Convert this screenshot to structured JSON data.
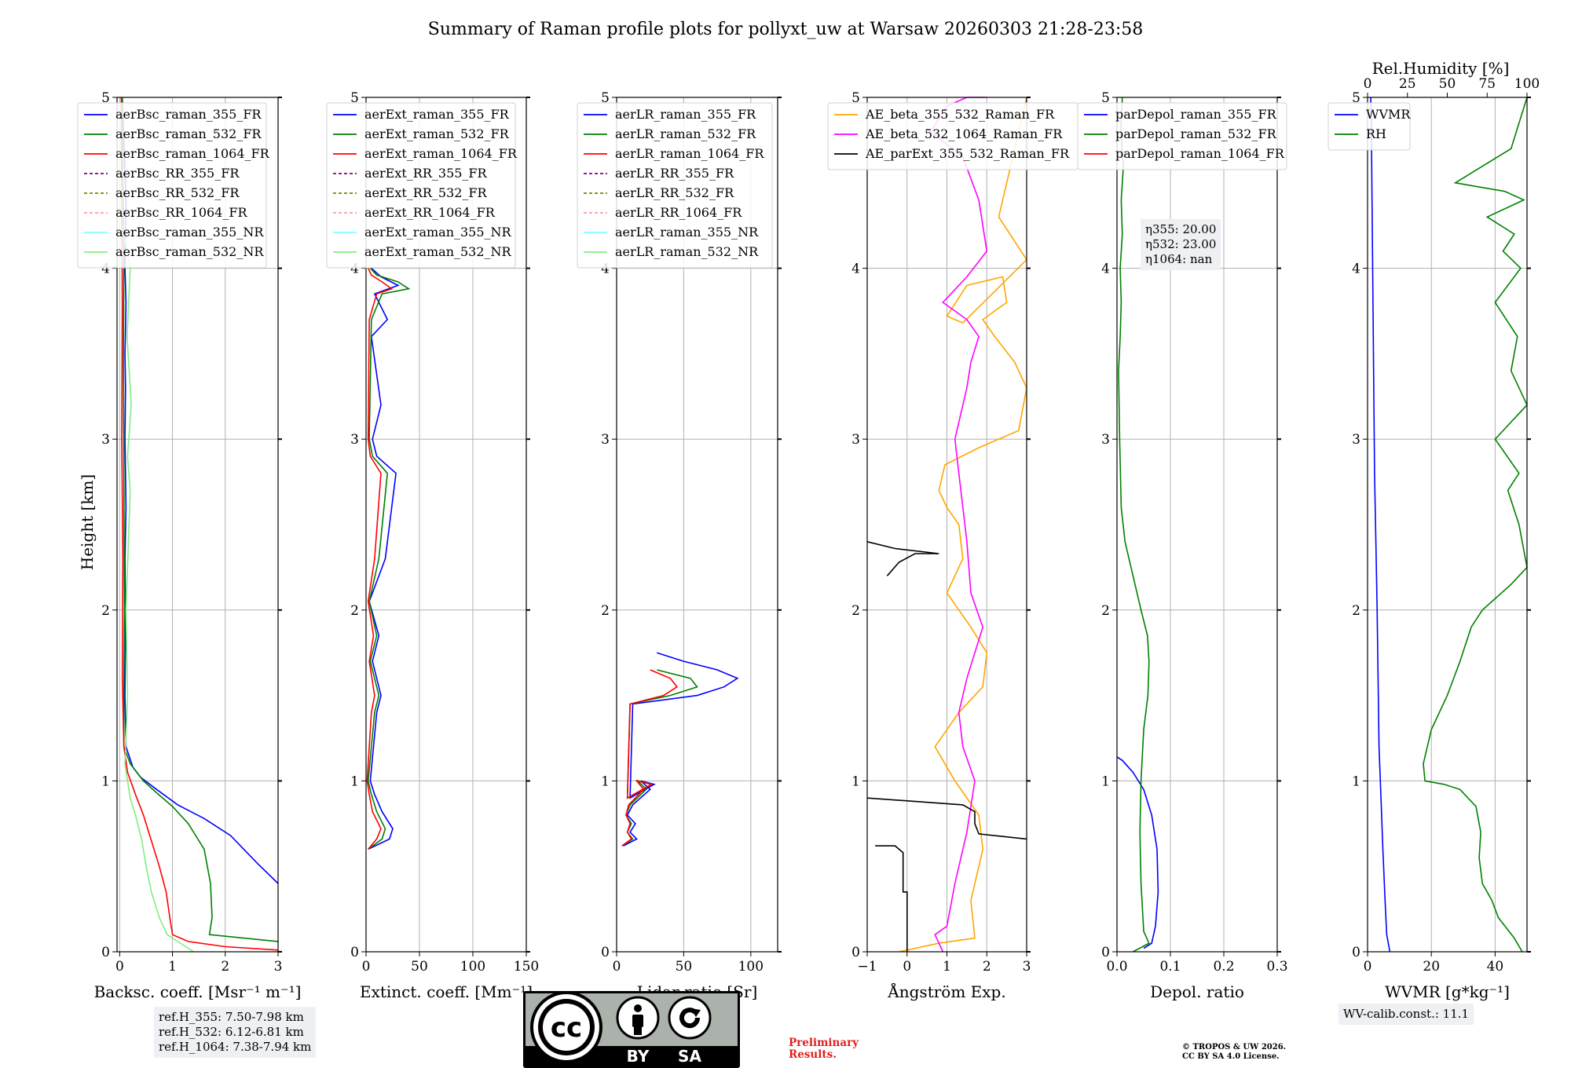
{
  "page": {
    "title": "Summary of Raman profile plots for pollyxt_uw at Warsaw 20260303 21:28-23:58"
  },
  "colors": {
    "blue": "#0000ff",
    "green": "#008000",
    "red": "#ff0000",
    "purple": "#800080",
    "olive": "#808000",
    "pink": "#ff9999",
    "cyan": "#80ffff",
    "lightgreen": "#80ee80",
    "orange": "#ffa500",
    "magenta": "#ff00ff",
    "black": "#000000"
  },
  "annotations": {
    "eta_lines": [
      "η355: 20.00",
      "η532: 23.00",
      "η1064: nan"
    ],
    "ref_lines": [
      "ref.H_355: 7.50-7.98 km",
      "ref.H_532: 6.12-6.81 km",
      "ref.H_1064: 7.38-7.94 km"
    ],
    "wv_calib": "WV-calib.const.: 11.1",
    "preliminary": [
      "Preliminary",
      "Results."
    ],
    "copyright": [
      "© TROPOS & UW 2026.",
      "CC BY SA 4.0 License."
    ],
    "license_logo": {
      "top_text": "cc",
      "by": "BY",
      "sa": "SA"
    }
  },
  "chart_data": [
    {
      "type": "line",
      "id": "backscatter",
      "xlabel": "Backsc. coeff. [Msr⁻¹ m⁻¹]",
      "ylabel": "Height [km]",
      "xlim": [
        -0.05,
        3
      ],
      "ylim": [
        0,
        5
      ],
      "xticks": [
        "0",
        "1",
        "2",
        "3"
      ],
      "xtick_values": [
        0,
        1,
        2,
        3
      ],
      "yticks": [
        "0",
        "1",
        "2",
        "3",
        "4",
        "5"
      ],
      "legend": [
        "aerBsc_raman_355_FR",
        "aerBsc_raman_532_FR",
        "aerBsc_raman_1064_FR",
        "aerBsc_RR_355_FR",
        "aerBsc_RR_532_FR",
        "aerBsc_RR_1064_FR",
        "aerBsc_raman_355_NR",
        "aerBsc_raman_532_NR"
      ],
      "series": [
        {
          "name": "aerBsc_raman_355_FR",
          "color": "blue",
          "x": [
            3.0,
            2.6,
            2.1,
            1.6,
            1.1,
            0.7,
            0.4,
            0.25,
            0.12,
            0.1,
            0.11,
            0.1,
            0.12,
            0.1,
            0.11,
            0.1,
            0.12,
            0.1,
            0.12,
            0.05
          ],
          "y": [
            0.4,
            0.52,
            0.68,
            0.78,
            0.86,
            0.95,
            1.02,
            1.08,
            1.2,
            1.5,
            1.9,
            2.3,
            2.6,
            3.0,
            3.3,
            3.5,
            3.8,
            4.0,
            4.4,
            5.0
          ]
        },
        {
          "name": "aerBsc_raman_532_FR",
          "color": "green",
          "x": [
            3.0,
            1.7,
            1.75,
            1.72,
            1.6,
            1.3,
            1.0,
            0.7,
            0.45,
            0.2,
            0.08,
            0.08,
            0.09,
            0.08,
            0.07,
            0.08,
            0.05
          ],
          "y": [
            0.06,
            0.1,
            0.2,
            0.4,
            0.6,
            0.75,
            0.85,
            0.93,
            1.0,
            1.1,
            1.2,
            1.6,
            2.0,
            2.8,
            3.5,
            4.0,
            5.0
          ]
        },
        {
          "name": "aerBsc_raman_1064_FR",
          "color": "red",
          "x": [
            3.0,
            2.0,
            1.3,
            1.0,
            0.95,
            0.88,
            0.75,
            0.6,
            0.45,
            0.3,
            0.15,
            0.08,
            0.05,
            0.06,
            0.04,
            0.05,
            0.03
          ],
          "y": [
            0.01,
            0.03,
            0.06,
            0.1,
            0.2,
            0.35,
            0.5,
            0.65,
            0.8,
            0.92,
            1.05,
            1.2,
            1.6,
            2.3,
            3.0,
            3.8,
            5.0
          ]
        },
        {
          "name": "aerBsc_raman_532_NR",
          "color": "lightgreen",
          "x": [
            1.4,
            0.9,
            0.75,
            0.6,
            0.5,
            0.42,
            0.3,
            0.2,
            0.1,
            0.15,
            0.12,
            0.2,
            0.15,
            0.22,
            0.14,
            0.2,
            0.08
          ],
          "y": [
            0.0,
            0.1,
            0.2,
            0.35,
            0.5,
            0.65,
            0.8,
            0.9,
            1.1,
            1.5,
            2.0,
            2.7,
            2.9,
            3.2,
            3.6,
            4.0,
            4.2
          ]
        }
      ]
    },
    {
      "type": "line",
      "id": "extinction",
      "xlabel": "Extinct. coeff. [Mm⁻¹]",
      "ylabel": "",
      "xlim": [
        0,
        150
      ],
      "ylim": [
        0,
        5
      ],
      "xticks": [
        "0",
        "50",
        "100",
        "150"
      ],
      "xtick_values": [
        0,
        50,
        100,
        150
      ],
      "yticks": [
        "0",
        "1",
        "2",
        "3",
        "4",
        "5"
      ],
      "legend": [
        "aerExt_raman_355_FR",
        "aerExt_raman_532_FR",
        "aerExt_raman_1064_FR",
        "aerExt_RR_355_FR",
        "aerExt_RR_532_FR",
        "aerExt_RR_1064_FR",
        "aerExt_raman_355_NR",
        "aerExt_raman_532_NR"
      ],
      "series": [
        {
          "name": "aerExt_raman_355_FR",
          "color": "blue",
          "x": [
            2,
            22,
            25,
            15,
            8,
            4,
            10,
            14,
            6,
            12,
            3,
            18,
            28,
            10,
            6,
            14,
            5,
            20,
            8,
            30,
            14,
            5
          ],
          "y": [
            0.6,
            0.66,
            0.72,
            0.82,
            0.92,
            1.0,
            1.4,
            1.5,
            1.7,
            1.85,
            2.05,
            2.3,
            2.8,
            2.9,
            3.0,
            3.2,
            3.6,
            3.7,
            3.85,
            3.9,
            3.95,
            4.0
          ]
        },
        {
          "name": "aerExt_raman_532_FR",
          "color": "green",
          "x": [
            2,
            15,
            18,
            10,
            5,
            2,
            8,
            12,
            4,
            10,
            3,
            12,
            20,
            6,
            3,
            5,
            15,
            40,
            30,
            10,
            4
          ],
          "y": [
            0.6,
            0.66,
            0.72,
            0.82,
            0.92,
            1.0,
            1.4,
            1.5,
            1.7,
            1.85,
            2.05,
            2.3,
            2.8,
            2.9,
            3.0,
            3.7,
            3.85,
            3.88,
            3.92,
            3.96,
            4.0
          ]
        },
        {
          "name": "aerExt_raman_1064_FR",
          "color": "red",
          "x": [
            2,
            10,
            14,
            6,
            3,
            1,
            5,
            8,
            3,
            7,
            2,
            8,
            14,
            4,
            2,
            3,
            10,
            24,
            15,
            5,
            2
          ],
          "y": [
            0.6,
            0.66,
            0.72,
            0.82,
            0.92,
            1.0,
            1.4,
            1.5,
            1.7,
            1.85,
            2.05,
            2.3,
            2.8,
            2.9,
            3.0,
            3.7,
            3.85,
            3.88,
            3.92,
            3.96,
            4.0
          ]
        }
      ]
    },
    {
      "type": "line",
      "id": "lidar_ratio",
      "xlabel": "Lidar ratio [Sr]",
      "ylabel": "",
      "xlim": [
        0,
        120
      ],
      "ylim": [
        0,
        5
      ],
      "xticks": [
        "0",
        "50",
        "100"
      ],
      "xtick_values": [
        0,
        50,
        100
      ],
      "yticks": [
        "0",
        "1",
        "2",
        "3",
        "4",
        "5"
      ],
      "legend": [
        "aerLR_raman_355_FR",
        "aerLR_raman_532_FR",
        "aerLR_raman_1064_FR",
        "aerLR_RR_355_FR",
        "aerLR_RR_532_FR",
        "aerLR_RR_1064_FR",
        "aerLR_raman_355_NR",
        "aerLR_raman_532_NR"
      ],
      "series": [
        {
          "name": "aerLR_raman_355_FR",
          "color": "blue",
          "x": [
            5,
            15,
            10,
            14,
            8,
            12,
            25,
            18,
            28,
            10,
            12,
            60,
            80,
            90,
            75,
            50,
            30
          ],
          "y": [
            0.62,
            0.66,
            0.7,
            0.75,
            0.8,
            0.86,
            0.95,
            1.0,
            0.98,
            0.9,
            1.45,
            1.5,
            1.55,
            1.6,
            1.65,
            1.7,
            1.75
          ]
        },
        {
          "name": "aerLR_raman_532_FR",
          "color": "green",
          "x": [
            4,
            12,
            8,
            11,
            7,
            10,
            22,
            16,
            26,
            8,
            10,
            40,
            60,
            55,
            30
          ],
          "y": [
            0.62,
            0.66,
            0.7,
            0.75,
            0.8,
            0.86,
            0.95,
            1.0,
            0.98,
            0.9,
            1.45,
            1.5,
            1.55,
            1.6,
            1.65
          ]
        },
        {
          "name": "aerLR_raman_1064_FR",
          "color": "red",
          "x": [
            4,
            11,
            8,
            10,
            7,
            9,
            20,
            15,
            26,
            8,
            10,
            35,
            45,
            40,
            25
          ],
          "y": [
            0.62,
            0.66,
            0.7,
            0.75,
            0.8,
            0.86,
            0.95,
            1.0,
            0.98,
            0.9,
            1.45,
            1.5,
            1.55,
            1.6,
            1.65
          ]
        }
      ]
    },
    {
      "type": "line",
      "id": "angstrom",
      "xlabel": "Ångström Exp.",
      "ylabel": "",
      "xlim": [
        -1,
        3
      ],
      "ylim": [
        0,
        5
      ],
      "xticks": [
        "−1",
        "0",
        "1",
        "2",
        "3"
      ],
      "xtick_values": [
        -1,
        0,
        1,
        2,
        3
      ],
      "yticks": [
        "0",
        "1",
        "2",
        "3",
        "4",
        "5"
      ],
      "legend": [
        "AE_beta_355_532_Raman_FR",
        "AE_beta_532_1064_Raman_FR",
        "AE_parExt_355_532_Raman_FR"
      ],
      "series": [
        {
          "name": "AE_beta_355_532_Raman_FR",
          "color": "orange",
          "x": [
            -0.2,
            0.8,
            1.7,
            1.6,
            1.9,
            1.8,
            1.2,
            0.7,
            1.3,
            1.9,
            2.0,
            1.6,
            1.0,
            1.4,
            1.3,
            1.0,
            0.8,
            0.95,
            1.8,
            2.8,
            3.0,
            2.7,
            2.2,
            1.9,
            2.5,
            2.4,
            1.5,
            1.0,
            1.4,
            3.0,
            2.3,
            3.0
          ],
          "y": [
            0.0,
            0.05,
            0.08,
            0.3,
            0.6,
            0.8,
            1.0,
            1.2,
            1.4,
            1.55,
            1.75,
            1.9,
            2.1,
            2.3,
            2.5,
            2.6,
            2.7,
            2.85,
            2.95,
            3.05,
            3.3,
            3.45,
            3.6,
            3.7,
            3.8,
            3.95,
            3.9,
            3.72,
            3.68,
            4.05,
            4.3,
            5.0
          ]
        },
        {
          "name": "AE_beta_532_1064_Raman_FR",
          "color": "magenta",
          "x": [
            0.9,
            0.7,
            1.0,
            1.2,
            1.5,
            1.7,
            1.4,
            1.3,
            1.5,
            1.9,
            1.6,
            1.5,
            1.4,
            1.3,
            1.2,
            1.5,
            1.6,
            1.8,
            1.5,
            1.2,
            0.9,
            1.5,
            2.0,
            1.8,
            1.4,
            0.6,
            1.0,
            1.5,
            2.0
          ],
          "y": [
            0.0,
            0.1,
            0.15,
            0.4,
            0.7,
            1.0,
            1.2,
            1.4,
            1.6,
            1.9,
            2.1,
            2.4,
            2.6,
            2.8,
            3.0,
            3.3,
            3.45,
            3.6,
            3.7,
            3.75,
            3.8,
            3.95,
            4.1,
            4.4,
            4.65,
            4.8,
            4.95,
            5.0,
            5.0
          ]
        },
        {
          "name": "AE_parExt_355_532_Raman_FR",
          "color": "black",
          "x": [
            0.0,
            0.0,
            -0.1,
            -0.1,
            -0.3,
            -0.8
          ],
          "y": [
            0.0,
            0.35,
            0.35,
            0.58,
            0.62,
            0.62
          ]
        },
        {
          "name": "AE_parExt_355_532_Raman_FR_b",
          "color": "black",
          "x": [
            3.0,
            1.8,
            1.7,
            1.7,
            1.4,
            -1.0
          ],
          "y": [
            0.66,
            0.69,
            0.75,
            0.82,
            0.86,
            0.9
          ]
        },
        {
          "name": "AE_parExt_355_532_Raman_FR_c",
          "color": "black",
          "x": [
            -0.5,
            -0.2,
            0.2,
            0.8,
            -0.3,
            -1.0
          ],
          "y": [
            2.2,
            2.28,
            2.33,
            2.33,
            2.36,
            2.4
          ]
        }
      ]
    },
    {
      "type": "line",
      "id": "depolarization",
      "xlabel": "Depol. ratio",
      "ylabel": "",
      "xlim": [
        0,
        0.3
      ],
      "ylim": [
        0,
        5
      ],
      "xticks": [
        "0.0",
        "0.1",
        "0.2",
        "0.3"
      ],
      "xtick_values": [
        0,
        0.1,
        0.2,
        0.3
      ],
      "yticks": [
        "0",
        "1",
        "2",
        "3",
        "4",
        "5"
      ],
      "legend": [
        "parDepol_raman_355_FR",
        "parDepol_raman_532_FR",
        "parDepol_raman_1064_FR"
      ],
      "series": [
        {
          "name": "parDepol_raman_355_FR",
          "color": "blue",
          "x": [
            0.05,
            0.065,
            0.072,
            0.077,
            0.075,
            0.065,
            0.05,
            0.03,
            0.01,
            0.0
          ],
          "y": [
            0.02,
            0.05,
            0.15,
            0.35,
            0.6,
            0.8,
            0.95,
            1.05,
            1.12,
            1.14
          ]
        },
        {
          "name": "parDepol_raman_532_FR",
          "color": "green",
          "x": [
            0.03,
            0.06,
            0.05,
            0.045,
            0.043,
            0.045,
            0.05,
            0.058,
            0.06,
            0.057,
            0.045,
            0.03,
            0.015,
            0.008,
            0.005,
            0.003,
            0.006,
            0.008,
            0.006,
            0.01,
            0.008,
            0.012,
            0.007,
            0.01
          ],
          "y": [
            0.0,
            0.05,
            0.12,
            0.4,
            0.7,
            1.0,
            1.3,
            1.5,
            1.7,
            1.85,
            2.0,
            2.2,
            2.4,
            2.6,
            3.0,
            3.4,
            3.6,
            3.8,
            4.0,
            4.2,
            4.4,
            4.6,
            4.8,
            5.0
          ]
        }
      ]
    },
    {
      "type": "line",
      "id": "wvmr_rh",
      "xlabel": "WVMR [g*kg⁻¹]",
      "ylabel": "",
      "x2label": "Rel.Humidity [%]",
      "xlim": [
        0,
        50
      ],
      "x2lim": [
        0,
        100
      ],
      "ylim": [
        0,
        5
      ],
      "xticks": [
        "0",
        "20",
        "40"
      ],
      "xtick_values": [
        0,
        20,
        40
      ],
      "x2ticks": [
        "0",
        "25",
        "50",
        "75",
        "100"
      ],
      "x2tick_values": [
        0,
        25,
        50,
        75,
        100
      ],
      "yticks": [
        "0",
        "1",
        "2",
        "3",
        "4",
        "5"
      ],
      "legend": [
        "WVMR",
        "RH"
      ],
      "series": [
        {
          "name": "WVMR",
          "color": "blue",
          "axis": "x",
          "x": [
            7,
            6,
            5.5,
            4.8,
            4.2,
            3.6,
            3.3,
            3.0,
            2.6,
            2.2,
            2.0,
            1.8,
            1.6,
            1.4,
            1.2,
            1.0
          ],
          "y": [
            0.0,
            0.1,
            0.3,
            0.6,
            0.9,
            1.2,
            1.6,
            2.0,
            2.4,
            2.8,
            3.2,
            3.6,
            4.0,
            4.4,
            4.8,
            5.0
          ]
        },
        {
          "name": "RH",
          "color": "green",
          "axis": "x2",
          "x": [
            97,
            92,
            82,
            78,
            72,
            70,
            71,
            68,
            58,
            48,
            36,
            35,
            40,
            50,
            58,
            65,
            72,
            90,
            100,
            95,
            88,
            95,
            80,
            100,
            90,
            94,
            80,
            96,
            85,
            92,
            75,
            98,
            86,
            55,
            90,
            100
          ],
          "y": [
            0.0,
            0.08,
            0.2,
            0.3,
            0.4,
            0.55,
            0.7,
            0.85,
            0.95,
            0.98,
            1.0,
            1.1,
            1.3,
            1.5,
            1.7,
            1.9,
            2.0,
            2.15,
            2.25,
            2.5,
            2.7,
            2.8,
            3.0,
            3.2,
            3.4,
            3.6,
            3.8,
            4.0,
            4.1,
            4.2,
            4.3,
            4.4,
            4.45,
            4.5,
            4.7,
            5.0
          ]
        }
      ]
    }
  ]
}
